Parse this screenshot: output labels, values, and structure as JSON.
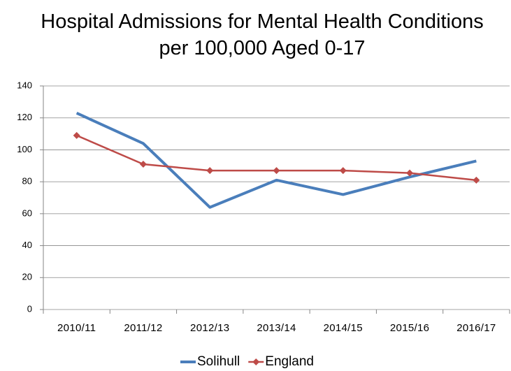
{
  "chart_data": {
    "type": "line",
    "title": "Hospital Admissions for Mental Health Conditions per 100,000 Aged 0-17",
    "categories": [
      "2010/11",
      "2011/12",
      "2012/13",
      "2013/14",
      "2014/15",
      "2015/16",
      "2016/17"
    ],
    "series": [
      {
        "name": "Solihull",
        "color": "#4a7ebb",
        "marker": "none",
        "values": [
          123,
          104,
          64,
          81,
          72,
          83,
          93
        ]
      },
      {
        "name": "England",
        "color": "#be4b48",
        "marker": "diamond",
        "values": [
          109,
          91,
          87,
          87,
          87,
          85.5,
          81
        ]
      }
    ],
    "ylim": [
      0,
      140
    ],
    "yticks": [
      0,
      20,
      40,
      60,
      80,
      100,
      120,
      140
    ],
    "grid": true,
    "legend": "bottom"
  }
}
